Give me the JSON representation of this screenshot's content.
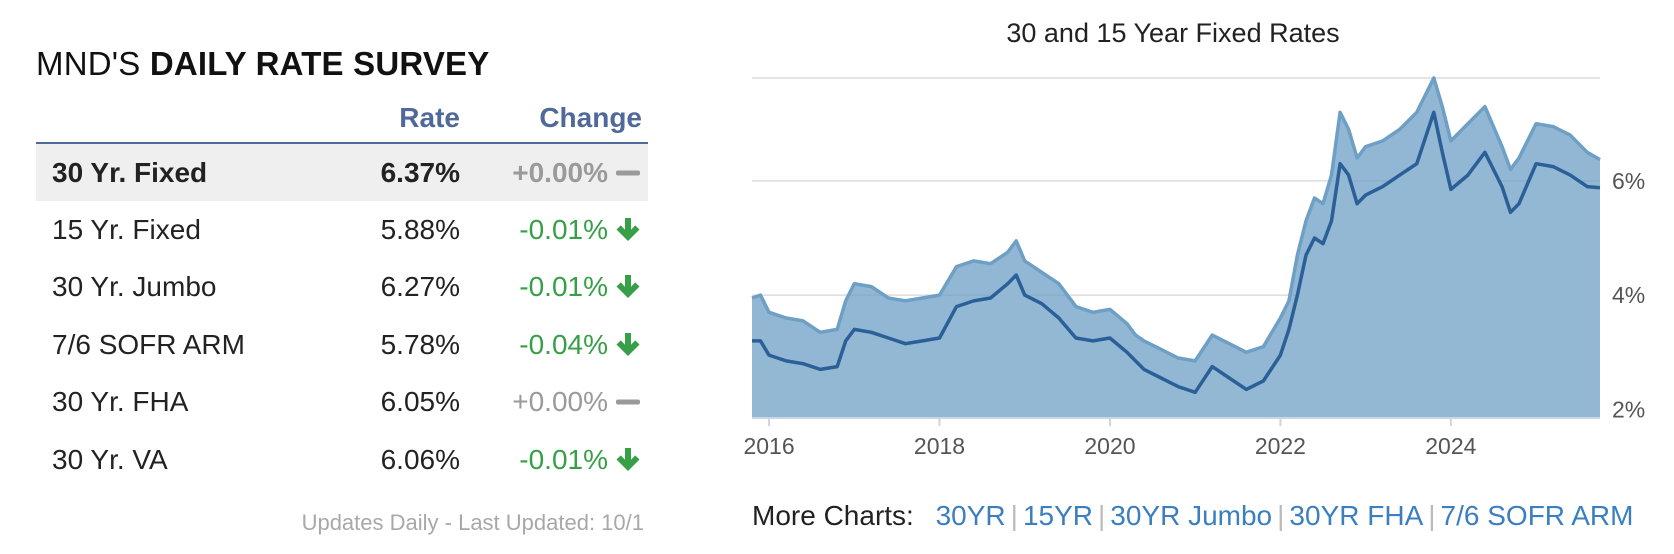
{
  "survey": {
    "title_prefix": "MND'S",
    "title_bold": "DAILY RATE SURVEY",
    "col_rate": "Rate",
    "col_change": "Change",
    "rows": [
      {
        "name": "30 Yr. Fixed",
        "rate": "6.37%",
        "change": "+0.00%",
        "direction": "flat",
        "highlight": true
      },
      {
        "name": "15 Yr. Fixed",
        "rate": "5.88%",
        "change": "-0.01%",
        "direction": "down",
        "highlight": false
      },
      {
        "name": "30 Yr. Jumbo",
        "rate": "6.27%",
        "change": "-0.01%",
        "direction": "down",
        "highlight": false
      },
      {
        "name": "7/6 SOFR ARM",
        "rate": "5.78%",
        "change": "-0.04%",
        "direction": "down",
        "highlight": false
      },
      {
        "name": "30 Yr. FHA",
        "rate": "6.05%",
        "change": "+0.00%",
        "direction": "flat",
        "highlight": false
      },
      {
        "name": "30 Yr. VA",
        "rate": "6.06%",
        "change": "-0.01%",
        "direction": "down",
        "highlight": false
      }
    ],
    "updated": "Updates Daily - Last Updated: 10/1"
  },
  "more_charts": {
    "label": "More Charts:",
    "links": [
      "30YR",
      "15YR",
      "30YR Jumbo",
      "30YR FHA",
      "7/6 SOFR ARM"
    ]
  },
  "colors": {
    "accent": "#51699a",
    "down": "#37a047",
    "flat": "#9a9a9a",
    "link": "#3b7fc0",
    "series_30": "#6e9fc5",
    "series_15": "#2a5f98",
    "area": "#94b8d3"
  },
  "chart_data": {
    "type": "area",
    "title": "30 and 15 Year Fixed Rates",
    "xlabel": "",
    "ylabel": "",
    "x_ticks": [
      "2016",
      "2018",
      "2020",
      "2022",
      "2024"
    ],
    "y_ticks": [
      "2%",
      "4%",
      "6%"
    ],
    "xlim": [
      2015.8,
      2025.75
    ],
    "ylim": [
      1.85,
      7.8
    ],
    "grid": true,
    "series": [
      {
        "x": [
          2015.8,
          2015.9,
          2016.0,
          2016.2,
          2016.4,
          2016.6,
          2016.8,
          2016.9,
          2017.0,
          2017.2,
          2017.4,
          2017.6,
          2017.8,
          2018.0,
          2018.2,
          2018.4,
          2018.6,
          2018.8,
          2018.9,
          2019.0,
          2019.2,
          2019.4,
          2019.6,
          2019.8,
          2020.0,
          2020.2,
          2020.3,
          2020.4,
          2020.6,
          2020.8,
          2021.0,
          2021.2,
          2021.4,
          2021.6,
          2021.8,
          2022.0,
          2022.1,
          2022.2,
          2022.3,
          2022.4,
          2022.5,
          2022.6,
          2022.7,
          2022.8,
          2022.9,
          2023.0,
          2023.2,
          2023.4,
          2023.6,
          2023.8,
          2023.9,
          2024.0,
          2024.2,
          2024.4,
          2024.6,
          2024.7,
          2024.8,
          2025.0,
          2025.2,
          2025.4,
          2025.6,
          2025.75
        ],
        "values": [
          3.95,
          4.0,
          3.7,
          3.6,
          3.55,
          3.35,
          3.4,
          3.9,
          4.2,
          4.15,
          3.95,
          3.9,
          3.95,
          4.0,
          4.5,
          4.6,
          4.55,
          4.75,
          4.95,
          4.6,
          4.4,
          4.2,
          3.8,
          3.7,
          3.75,
          3.5,
          3.3,
          3.2,
          3.05,
          2.9,
          2.85,
          3.3,
          3.15,
          3.0,
          3.1,
          3.6,
          3.9,
          4.7,
          5.3,
          5.7,
          5.6,
          6.1,
          7.2,
          6.9,
          6.4,
          6.6,
          6.7,
          6.9,
          7.2,
          7.8,
          7.3,
          6.7,
          7.0,
          7.3,
          6.6,
          6.2,
          6.4,
          7.0,
          6.95,
          6.8,
          6.5,
          6.37
        ]
      },
      {
        "x": [
          2015.8,
          2015.9,
          2016.0,
          2016.2,
          2016.4,
          2016.6,
          2016.8,
          2016.9,
          2017.0,
          2017.2,
          2017.4,
          2017.6,
          2017.8,
          2018.0,
          2018.2,
          2018.4,
          2018.6,
          2018.8,
          2018.9,
          2019.0,
          2019.2,
          2019.4,
          2019.6,
          2019.8,
          2020.0,
          2020.2,
          2020.3,
          2020.4,
          2020.6,
          2020.8,
          2021.0,
          2021.2,
          2021.4,
          2021.6,
          2021.8,
          2022.0,
          2022.1,
          2022.2,
          2022.3,
          2022.4,
          2022.5,
          2022.6,
          2022.7,
          2022.8,
          2022.9,
          2023.0,
          2023.2,
          2023.4,
          2023.6,
          2023.8,
          2023.9,
          2024.0,
          2024.2,
          2024.4,
          2024.6,
          2024.7,
          2024.8,
          2025.0,
          2025.2,
          2025.4,
          2025.6,
          2025.75
        ],
        "values": [
          3.2,
          3.2,
          2.95,
          2.85,
          2.8,
          2.7,
          2.75,
          3.2,
          3.4,
          3.35,
          3.25,
          3.15,
          3.2,
          3.25,
          3.8,
          3.9,
          3.95,
          4.2,
          4.35,
          4.0,
          3.85,
          3.6,
          3.25,
          3.2,
          3.25,
          3.0,
          2.85,
          2.7,
          2.55,
          2.4,
          2.3,
          2.75,
          2.55,
          2.35,
          2.5,
          2.95,
          3.4,
          4.0,
          4.7,
          5.0,
          4.9,
          5.3,
          6.3,
          6.1,
          5.6,
          5.75,
          5.9,
          6.1,
          6.3,
          7.2,
          6.5,
          5.85,
          6.1,
          6.5,
          5.9,
          5.45,
          5.6,
          6.3,
          6.25,
          6.1,
          5.9,
          5.88
        ]
      }
    ]
  }
}
